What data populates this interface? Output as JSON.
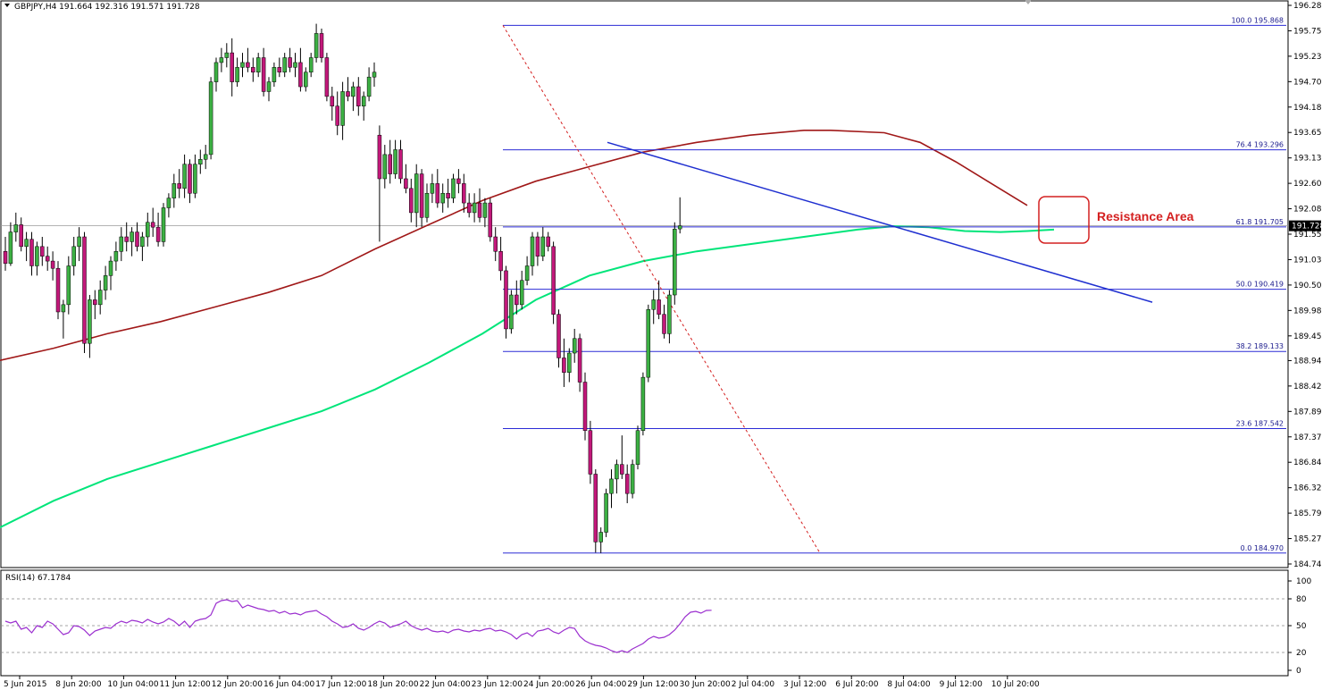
{
  "header": {
    "symbol_label": "GBPJPY,H4  191.664 192.316 191.571 191.728",
    "rsi_label": "RSI(14) 67.1784"
  },
  "price_axis": {
    "ticks": [
      "196.280",
      "195.755",
      "195.230",
      "194.705",
      "194.180",
      "193.655",
      "193.130",
      "192.605",
      "192.080",
      "191.555",
      "191.030",
      "190.505",
      "189.980",
      "189.455",
      "188.945",
      "188.420",
      "187.895",
      "187.370",
      "186.845",
      "186.320",
      "185.795",
      "185.270",
      "184.745"
    ],
    "current_price": "191.728",
    "current_color": "#000000"
  },
  "rsi_axis": {
    "ticks": [
      "100",
      "80",
      "50",
      "20",
      "0"
    ],
    "levels": [
      80,
      50,
      20
    ]
  },
  "time_axis": {
    "labels": [
      "5 Jun 2015",
      "8 Jun 20:00",
      "10 Jun 04:00",
      "11 Jun 12:00",
      "12 Jun 20:00",
      "16 Jun 04:00",
      "17 Jun 12:00",
      "18 Jun 20:00",
      "22 Jun 04:00",
      "23 Jun 12:00",
      "24 Jun 20:00",
      "26 Jun 04:00",
      "29 Jun 12:00",
      "30 Jun 20:00",
      "2 Jul 04:00",
      "3 Jul 12:00",
      "6 Jul 20:00",
      "8 Jul 04:00",
      "9 Jul 12:00",
      "10 Jul 20:00"
    ]
  },
  "fibonacci": {
    "levels": [
      {
        "label": "100.0 195.868",
        "price": 195.868
      },
      {
        "label": "76.4 193.296",
        "price": 193.296
      },
      {
        "label": "61.8 191.705",
        "price": 191.705
      },
      {
        "label": "50.0 190.419",
        "price": 190.419
      },
      {
        "label": "38.2 189.133",
        "price": 189.133
      },
      {
        "label": "23.6 187.542",
        "price": 187.542
      },
      {
        "label": "0.0 184.970",
        "price": 184.97
      }
    ],
    "color": "#2b2bd6"
  },
  "annotation": {
    "text": "Resistance Area",
    "color": "#d42020"
  },
  "colors": {
    "bull_candle": "#3cb043",
    "bear_candle": "#c2187a",
    "wick": "#000000",
    "ma_slow": "#00e57a",
    "ma_fast": "#a01818",
    "trendline": "#1f2fd0",
    "diagonal": "#d42020",
    "rsi_line": "#9b2fcf",
    "current_price_line": "#9a9a9a"
  },
  "chart_data": {
    "type": "candlestick",
    "symbol": "GBPJPY",
    "timeframe": "H4",
    "ylim": [
      184.745,
      196.28
    ],
    "ohlc_last": {
      "open": 191.664,
      "high": 192.316,
      "low": 191.571,
      "close": 191.728
    },
    "candles": [
      [
        191.2,
        191.5,
        190.8,
        190.95
      ],
      [
        190.95,
        191.8,
        190.9,
        191.6
      ],
      [
        191.6,
        192.0,
        191.4,
        191.75
      ],
      [
        191.75,
        191.9,
        191.2,
        191.3
      ],
      [
        191.3,
        191.6,
        191.0,
        191.45
      ],
      [
        191.45,
        191.6,
        190.7,
        190.9
      ],
      [
        190.9,
        191.4,
        190.7,
        191.3
      ],
      [
        191.3,
        191.5,
        190.9,
        191.1
      ],
      [
        191.1,
        191.3,
        190.8,
        191.0
      ],
      [
        191.0,
        191.2,
        190.6,
        190.85
      ],
      [
        190.85,
        191.0,
        189.8,
        189.95
      ],
      [
        189.95,
        190.2,
        189.4,
        190.1
      ],
      [
        190.1,
        191.1,
        189.9,
        190.9
      ],
      [
        190.9,
        191.5,
        190.7,
        191.3
      ],
      [
        191.3,
        191.7,
        191.0,
        191.5
      ],
      [
        191.5,
        191.6,
        189.1,
        189.3
      ],
      [
        189.3,
        190.3,
        189.0,
        190.2
      ],
      [
        190.2,
        190.4,
        189.8,
        190.1
      ],
      [
        190.1,
        190.6,
        189.9,
        190.4
      ],
      [
        190.4,
        190.9,
        190.2,
        190.7
      ],
      [
        190.7,
        191.1,
        190.4,
        191.0
      ],
      [
        191.0,
        191.4,
        190.8,
        191.2
      ],
      [
        191.2,
        191.7,
        191.0,
        191.5
      ],
      [
        191.5,
        191.8,
        191.2,
        191.4
      ],
      [
        191.4,
        191.7,
        191.1,
        191.6
      ],
      [
        191.6,
        191.8,
        191.2,
        191.3
      ],
      [
        191.3,
        191.6,
        191.0,
        191.5
      ],
      [
        191.5,
        192.0,
        191.3,
        191.8
      ],
      [
        191.8,
        192.1,
        191.5,
        191.7
      ],
      [
        191.7,
        192.0,
        191.3,
        191.4
      ],
      [
        191.4,
        192.2,
        191.3,
        192.1
      ],
      [
        192.1,
        192.4,
        191.9,
        192.3
      ],
      [
        192.3,
        192.8,
        192.1,
        192.6
      ],
      [
        192.6,
        192.9,
        192.3,
        192.5
      ],
      [
        192.5,
        193.2,
        192.3,
        193.0
      ],
      [
        193.0,
        193.1,
        192.2,
        192.4
      ],
      [
        192.4,
        193.2,
        192.3,
        193.0
      ],
      [
        193.0,
        193.3,
        192.8,
        193.1
      ],
      [
        193.1,
        193.4,
        192.9,
        193.2
      ],
      [
        193.2,
        194.8,
        193.1,
        194.7
      ],
      [
        194.7,
        195.2,
        194.5,
        195.1
      ],
      [
        195.1,
        195.4,
        194.9,
        195.2
      ],
      [
        195.2,
        195.5,
        195.0,
        195.3
      ],
      [
        195.3,
        195.6,
        194.4,
        194.7
      ],
      [
        194.7,
        195.2,
        194.6,
        195.0
      ],
      [
        195.0,
        195.3,
        194.8,
        195.1
      ],
      [
        195.1,
        195.4,
        194.9,
        195.0
      ],
      [
        195.0,
        195.2,
        194.7,
        194.9
      ],
      [
        194.9,
        195.3,
        194.8,
        195.2
      ],
      [
        195.2,
        195.4,
        194.4,
        194.5
      ],
      [
        194.5,
        194.8,
        194.3,
        194.7
      ],
      [
        194.7,
        195.1,
        194.6,
        195.0
      ],
      [
        195.0,
        195.2,
        194.8,
        194.9
      ],
      [
        194.9,
        195.3,
        194.8,
        195.2
      ],
      [
        195.2,
        195.4,
        194.9,
        195.0
      ],
      [
        195.0,
        195.3,
        194.8,
        195.1
      ],
      [
        195.1,
        195.4,
        194.5,
        194.6
      ],
      [
        194.6,
        195.0,
        194.5,
        194.9
      ],
      [
        194.9,
        195.3,
        194.8,
        195.2
      ],
      [
        195.2,
        195.9,
        195.1,
        195.7
      ],
      [
        195.7,
        195.8,
        195.1,
        195.2
      ],
      [
        195.2,
        195.3,
        194.3,
        194.4
      ],
      [
        194.4,
        194.6,
        193.9,
        194.2
      ],
      [
        194.2,
        194.5,
        193.6,
        193.8
      ],
      [
        193.8,
        194.7,
        193.5,
        194.5
      ],
      [
        194.5,
        194.8,
        194.3,
        194.4
      ],
      [
        194.4,
        194.7,
        194.1,
        194.6
      ],
      [
        194.6,
        194.8,
        194.0,
        194.2
      ],
      [
        194.2,
        194.5,
        193.9,
        194.4
      ],
      [
        194.4,
        195.0,
        194.3,
        194.8
      ],
      [
        194.8,
        195.1,
        194.6,
        194.9
      ],
      [
        193.6,
        193.8,
        191.4,
        192.7
      ],
      [
        192.7,
        193.4,
        192.5,
        193.2
      ],
      [
        193.2,
        193.5,
        192.6,
        192.8
      ],
      [
        192.8,
        193.5,
        192.7,
        193.3
      ],
      [
        193.3,
        193.5,
        192.6,
        192.7
      ],
      [
        192.7,
        193.0,
        192.4,
        192.5
      ],
      [
        192.5,
        192.7,
        191.8,
        192.0
      ],
      [
        192.0,
        193.0,
        191.7,
        192.8
      ],
      [
        192.8,
        192.9,
        191.7,
        191.9
      ],
      [
        191.9,
        192.6,
        191.8,
        192.4
      ],
      [
        192.4,
        192.8,
        192.2,
        192.6
      ],
      [
        192.6,
        192.9,
        192.1,
        192.2
      ],
      [
        192.2,
        192.6,
        192.0,
        192.4
      ],
      [
        192.4,
        192.7,
        192.1,
        192.3
      ],
      [
        192.3,
        192.8,
        192.2,
        192.7
      ],
      [
        192.7,
        192.9,
        192.4,
        192.6
      ],
      [
        192.6,
        192.8,
        192.0,
        192.2
      ],
      [
        192.2,
        192.4,
        191.9,
        192.0
      ],
      [
        192.0,
        192.4,
        191.8,
        192.2
      ],
      [
        192.2,
        192.5,
        191.8,
        191.9
      ],
      [
        191.9,
        192.3,
        191.7,
        192.2
      ],
      [
        192.2,
        192.3,
        191.4,
        191.5
      ],
      [
        191.5,
        191.7,
        191.0,
        191.2
      ],
      [
        191.2,
        191.5,
        190.6,
        190.8
      ],
      [
        190.8,
        190.9,
        189.4,
        189.6
      ],
      [
        189.6,
        190.4,
        189.5,
        190.3
      ],
      [
        190.3,
        190.6,
        189.9,
        190.1
      ],
      [
        190.1,
        190.8,
        190.0,
        190.6
      ],
      [
        190.6,
        191.1,
        190.5,
        190.9
      ],
      [
        190.9,
        191.6,
        190.7,
        191.5
      ],
      [
        191.5,
        191.6,
        190.9,
        191.1
      ],
      [
        191.1,
        191.7,
        191.0,
        191.5
      ],
      [
        191.5,
        191.6,
        191.2,
        191.3
      ],
      [
        191.3,
        191.4,
        189.7,
        189.9
      ],
      [
        189.9,
        190.0,
        188.8,
        189.0
      ],
      [
        189.0,
        189.4,
        188.4,
        188.7
      ],
      [
        188.7,
        189.2,
        188.5,
        189.1
      ],
      [
        189.1,
        189.6,
        188.9,
        189.4
      ],
      [
        189.4,
        189.5,
        188.3,
        188.5
      ],
      [
        188.5,
        188.7,
        187.3,
        187.5
      ],
      [
        187.5,
        187.7,
        186.4,
        186.6
      ],
      [
        186.6,
        186.7,
        184.98,
        185.2
      ],
      [
        185.2,
        185.5,
        184.97,
        185.4
      ],
      [
        185.4,
        186.3,
        185.3,
        186.2
      ],
      [
        186.2,
        186.7,
        185.9,
        186.5
      ],
      [
        186.5,
        186.9,
        186.2,
        186.8
      ],
      [
        186.8,
        187.4,
        186.5,
        186.6
      ],
      [
        186.6,
        186.8,
        186.0,
        186.2
      ],
      [
        186.2,
        186.9,
        186.1,
        186.8
      ],
      [
        186.8,
        187.6,
        186.7,
        187.5
      ],
      [
        187.5,
        188.7,
        187.4,
        188.6
      ],
      [
        188.6,
        190.1,
        188.5,
        190.0
      ],
      [
        190.0,
        190.4,
        189.7,
        190.2
      ],
      [
        190.2,
        190.6,
        189.8,
        189.9
      ],
      [
        189.9,
        190.1,
        189.4,
        189.5
      ],
      [
        189.5,
        190.4,
        189.3,
        190.3
      ],
      [
        190.3,
        191.8,
        190.1,
        191.66
      ],
      [
        191.664,
        192.316,
        191.571,
        191.728
      ]
    ],
    "ma_fast_points": [
      [
        0,
        188.95
      ],
      [
        60,
        189.2
      ],
      [
        120,
        189.5
      ],
      [
        180,
        189.75
      ],
      [
        240,
        190.05
      ],
      [
        300,
        190.35
      ],
      [
        360,
        190.7
      ],
      [
        420,
        191.25
      ],
      [
        480,
        191.75
      ],
      [
        540,
        192.25
      ],
      [
        600,
        192.65
      ],
      [
        660,
        192.95
      ],
      [
        720,
        193.25
      ],
      [
        780,
        193.45
      ],
      [
        840,
        193.6
      ],
      [
        900,
        193.7
      ],
      [
        930,
        193.7
      ],
      [
        990,
        193.65
      ],
      [
        1030,
        193.45
      ],
      [
        1070,
        193.05
      ],
      [
        1110,
        192.6
      ],
      [
        1150,
        192.15
      ]
    ],
    "ma_slow_points": [
      [
        0,
        185.5
      ],
      [
        60,
        186.05
      ],
      [
        120,
        186.5
      ],
      [
        180,
        186.85
      ],
      [
        240,
        187.2
      ],
      [
        300,
        187.55
      ],
      [
        360,
        187.9
      ],
      [
        420,
        188.35
      ],
      [
        480,
        188.9
      ],
      [
        540,
        189.5
      ],
      [
        600,
        190.2
      ],
      [
        660,
        190.7
      ],
      [
        720,
        191.0
      ],
      [
        780,
        191.2
      ],
      [
        840,
        191.35
      ],
      [
        900,
        191.5
      ],
      [
        960,
        191.65
      ],
      [
        1000,
        191.72
      ],
      [
        1040,
        191.7
      ],
      [
        1080,
        191.62
      ],
      [
        1120,
        191.6
      ],
      [
        1150,
        191.62
      ],
      [
        1180,
        191.65
      ]
    ],
    "trendline": [
      [
        680,
        193.45
      ],
      [
        1290,
        190.15
      ]
    ],
    "diagonal": [
      [
        563,
        195.868
      ],
      [
        918,
        184.97
      ]
    ],
    "rsi_series": [
      55,
      53,
      55,
      46,
      48,
      42,
      50,
      48,
      55,
      52,
      46,
      40,
      42,
      50,
      49,
      45,
      39,
      44,
      46,
      48,
      47,
      52,
      55,
      53,
      56,
      55,
      53,
      57,
      54,
      52,
      54,
      58,
      55,
      50,
      55,
      48,
      55,
      57,
      58,
      62,
      75,
      78,
      79,
      77,
      78,
      70,
      73,
      71,
      69,
      68,
      66,
      67,
      64,
      66,
      63,
      64,
      62,
      65,
      66,
      67,
      63,
      60,
      55,
      52,
      48,
      49,
      52,
      47,
      45,
      48,
      52,
      55,
      53,
      48,
      50,
      52,
      55,
      50,
      47,
      45,
      47,
      44,
      43,
      44,
      42,
      45,
      46,
      44,
      43,
      45,
      44,
      46,
      47,
      44,
      45,
      43,
      40,
      35,
      40,
      42,
      38,
      44,
      45,
      47,
      43,
      41,
      45,
      48,
      47,
      38,
      33,
      30,
      28,
      27,
      25,
      22,
      20,
      22,
      20,
      24,
      27,
      30,
      35,
      38,
      36,
      37,
      40,
      45,
      52,
      60,
      65,
      66,
      64,
      67,
      67.18
    ],
    "rsi_ylim": [
      0,
      100
    ]
  }
}
